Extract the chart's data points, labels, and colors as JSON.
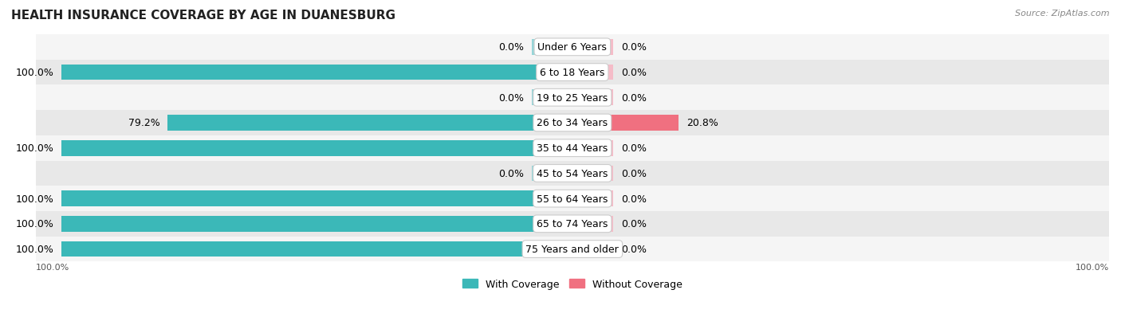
{
  "title": "HEALTH INSURANCE COVERAGE BY AGE IN DUANESBURG",
  "source": "Source: ZipAtlas.com",
  "categories": [
    "Under 6 Years",
    "6 to 18 Years",
    "19 to 25 Years",
    "26 to 34 Years",
    "35 to 44 Years",
    "45 to 54 Years",
    "55 to 64 Years",
    "65 to 74 Years",
    "75 Years and older"
  ],
  "with_coverage": [
    0.0,
    100.0,
    0.0,
    79.2,
    100.0,
    0.0,
    100.0,
    100.0,
    100.0
  ],
  "without_coverage": [
    0.0,
    0.0,
    0.0,
    20.8,
    0.0,
    0.0,
    0.0,
    0.0,
    0.0
  ],
  "color_with": "#3bb8b8",
  "color_without": "#f07080",
  "color_with_zero": "#96d5d8",
  "color_without_zero": "#f5bcc8",
  "bg_dark": "#e8e8e8",
  "bg_light": "#f5f5f5",
  "bar_height": 0.62,
  "zero_bar_size": 8.0,
  "xlim_left": -100,
  "xlim_right": 100,
  "legend_with": "With Coverage",
  "legend_without": "Without Coverage",
  "x_left_label": "100.0%",
  "x_right_label": "100.0%",
  "label_fontsize": 9,
  "title_fontsize": 11,
  "source_fontsize": 8
}
